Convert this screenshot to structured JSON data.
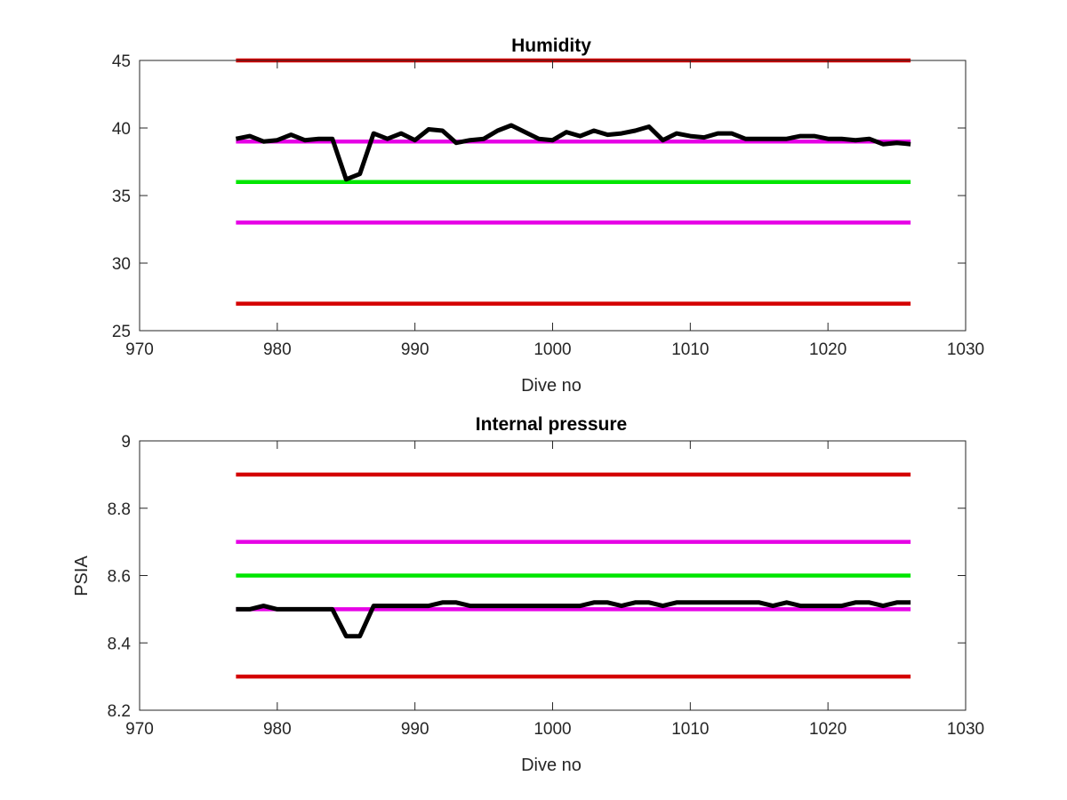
{
  "colors": {
    "data_line": "#000000",
    "red_limit": "#d40000",
    "magenta_limit": "#e600e6",
    "green_target": "#00e600",
    "axis": "#262626"
  },
  "chart_data": [
    {
      "type": "line",
      "title": "Humidity",
      "xlabel": "Dive no",
      "ylabel": "",
      "xlim": [
        970,
        1030
      ],
      "ylim": [
        25,
        45
      ],
      "xticks": [
        "970",
        "980",
        "990",
        "1000",
        "1010",
        "1020",
        "1030"
      ],
      "yticks": [
        "25",
        "30",
        "35",
        "40",
        "45"
      ],
      "grid": false,
      "series": [
        {
          "color": "#000000",
          "x": [
            977,
            978,
            979,
            980,
            981,
            982,
            983,
            984,
            985,
            986,
            987,
            988,
            989,
            990,
            991,
            992,
            993,
            994,
            995,
            996,
            997,
            998,
            999,
            1000,
            1001,
            1002,
            1003,
            1004,
            1005,
            1006,
            1007,
            1008,
            1009,
            1010,
            1011,
            1012,
            1013,
            1014,
            1015,
            1016,
            1017,
            1018,
            1019,
            1020,
            1021,
            1022,
            1023,
            1024,
            1025,
            1026
          ],
          "y": [
            39.2,
            39.4,
            39.0,
            39.1,
            39.5,
            39.1,
            39.2,
            39.2,
            36.2,
            36.6,
            39.6,
            39.2,
            39.6,
            39.1,
            39.9,
            39.8,
            38.9,
            39.1,
            39.2,
            39.8,
            40.2,
            39.7,
            39.2,
            39.1,
            39.7,
            39.4,
            39.8,
            39.5,
            39.6,
            39.8,
            40.1,
            39.1,
            39.6,
            39.4,
            39.3,
            39.6,
            39.6,
            39.2,
            39.2,
            39.2,
            39.2,
            39.4,
            39.4,
            39.2,
            39.2,
            39.1,
            39.2,
            38.8,
            38.9,
            38.8
          ]
        },
        {
          "color": "#d40000",
          "x": [
            977,
            1026
          ],
          "y": [
            45,
            45
          ]
        },
        {
          "color": "#e600e6",
          "x": [
            977,
            1026
          ],
          "y": [
            39,
            39
          ]
        },
        {
          "color": "#00e600",
          "x": [
            977,
            1026
          ],
          "y": [
            36,
            36
          ]
        },
        {
          "color": "#e600e6",
          "x": [
            977,
            1026
          ],
          "y": [
            33,
            33
          ]
        },
        {
          "color": "#d40000",
          "x": [
            977,
            1026
          ],
          "y": [
            27,
            27
          ]
        }
      ]
    },
    {
      "type": "line",
      "title": "Internal pressure",
      "xlabel": "Dive no",
      "ylabel": "PSIA",
      "xlim": [
        970,
        1030
      ],
      "ylim": [
        8.2,
        9
      ],
      "xticks": [
        "970",
        "980",
        "990",
        "1000",
        "1010",
        "1020",
        "1030"
      ],
      "yticks": [
        "8.2",
        "8.4",
        "8.6",
        "8.8",
        "9"
      ],
      "grid": false,
      "series": [
        {
          "color": "#000000",
          "x": [
            977,
            978,
            979,
            980,
            981,
            982,
            983,
            984,
            985,
            986,
            987,
            988,
            989,
            990,
            991,
            992,
            993,
            994,
            995,
            996,
            997,
            998,
            999,
            1000,
            1001,
            1002,
            1003,
            1004,
            1005,
            1006,
            1007,
            1008,
            1009,
            1010,
            1011,
            1012,
            1013,
            1014,
            1015,
            1016,
            1017,
            1018,
            1019,
            1020,
            1021,
            1022,
            1023,
            1024,
            1025,
            1026
          ],
          "y": [
            8.5,
            8.5,
            8.51,
            8.5,
            8.5,
            8.5,
            8.5,
            8.5,
            8.42,
            8.42,
            8.51,
            8.51,
            8.51,
            8.51,
            8.51,
            8.52,
            8.52,
            8.51,
            8.51,
            8.51,
            8.51,
            8.51,
            8.51,
            8.51,
            8.51,
            8.51,
            8.52,
            8.52,
            8.51,
            8.52,
            8.52,
            8.51,
            8.52,
            8.52,
            8.52,
            8.52,
            8.52,
            8.52,
            8.52,
            8.51,
            8.52,
            8.51,
            8.51,
            8.51,
            8.51,
            8.52,
            8.52,
            8.51,
            8.52,
            8.52
          ]
        },
        {
          "color": "#d40000",
          "x": [
            977,
            1026
          ],
          "y": [
            8.9,
            8.9
          ]
        },
        {
          "color": "#e600e6",
          "x": [
            977,
            1026
          ],
          "y": [
            8.7,
            8.7
          ]
        },
        {
          "color": "#00e600",
          "x": [
            977,
            1026
          ],
          "y": [
            8.6,
            8.6
          ]
        },
        {
          "color": "#e600e6",
          "x": [
            977,
            1026
          ],
          "y": [
            8.5,
            8.5
          ]
        },
        {
          "color": "#d40000",
          "x": [
            977,
            1026
          ],
          "y": [
            8.3,
            8.3
          ]
        }
      ]
    }
  ]
}
